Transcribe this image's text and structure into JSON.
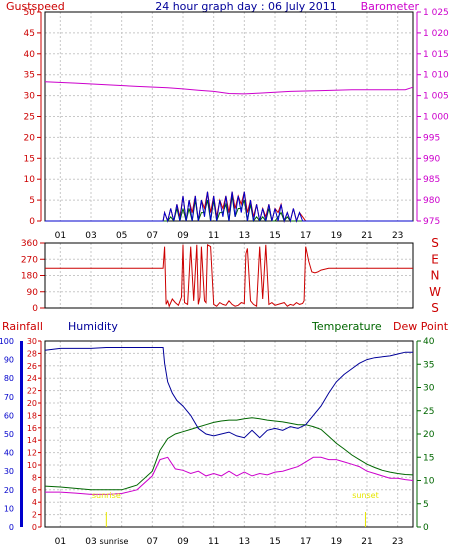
{
  "title": "24 hour graph day : 06 July 2011",
  "colors": {
    "gust": "#cc0000",
    "barometer": "#cc00cc",
    "wind": "#cc0000",
    "rain": "#cc0000",
    "humidity": "#000099",
    "temperature": "#006600",
    "dewpoint": "#cc00cc",
    "humAxis": "#0000cc",
    "sunLabel": "#e6e600",
    "grid": "#c8c8c8"
  },
  "chart_data": [
    {
      "type": "line",
      "name": "gust-barometer",
      "left_label": "Gustspeed",
      "right_label": "Barometer",
      "x_ticks": [
        "01",
        "03",
        "05",
        "07",
        "09",
        "11",
        "13",
        "15",
        "17",
        "19",
        "21",
        "23"
      ],
      "xlim": [
        0,
        24
      ],
      "y_left_ticks": [
        "0",
        "5",
        "10",
        "15",
        "20",
        "25",
        "30",
        "35",
        "40",
        "45",
        "50"
      ],
      "ylim_left": [
        0,
        50
      ],
      "y_right_ticks": [
        "975",
        "980",
        "985",
        "990",
        "995",
        "1 000",
        "1 005",
        "1 010",
        "1 015",
        "1 020",
        "1 025"
      ],
      "ylim_right": [
        975,
        1025
      ],
      "series": [
        {
          "axis": "right",
          "x": [
            0,
            2,
            4,
            6,
            8,
            9,
            10,
            11,
            12,
            13,
            14,
            15,
            16,
            18,
            20,
            22,
            23.5,
            24
          ],
          "y": [
            1008.3,
            1008.0,
            1007.6,
            1007.2,
            1006.9,
            1006.6,
            1006.3,
            1006.0,
            1005.5,
            1005.4,
            1005.6,
            1005.8,
            1006.0,
            1006.2,
            1006.4,
            1006.4,
            1006.4,
            1007.0
          ]
        },
        {
          "axis": "left",
          "x": [
            0,
            7.7,
            7.8,
            8.0,
            8.2,
            8.4,
            8.6,
            8.8,
            9.0,
            9.2,
            9.4,
            9.6,
            9.8,
            10.0,
            10.2,
            10.4,
            10.6,
            10.8,
            11.0,
            11.2,
            11.4,
            11.6,
            11.8,
            12.0,
            12.2,
            12.4,
            12.6,
            12.8,
            13.0,
            13.2,
            13.4,
            13.6,
            13.8,
            14.0,
            14.2,
            14.4,
            14.6,
            14.8,
            15.0,
            15.2,
            15.4,
            15.6,
            15.8,
            16.0,
            16.2,
            16.4,
            16.6,
            16.8,
            17.0,
            17.1,
            24
          ],
          "y": [
            0,
            0,
            2,
            0,
            3,
            0,
            4,
            1,
            6,
            0,
            5,
            2,
            6,
            0,
            5,
            3,
            7,
            2,
            6,
            1,
            5,
            3,
            6,
            2,
            7,
            3,
            6,
            4,
            7,
            2,
            5,
            1,
            4,
            0,
            3,
            1,
            4,
            0,
            3,
            2,
            4,
            0,
            2,
            0,
            3,
            0,
            2,
            1,
            0,
            0,
            0
          ]
        }
      ]
    },
    {
      "type": "line",
      "name": "wind-direction",
      "y_ticks": [
        "360",
        "270",
        "180",
        "90",
        "0"
      ],
      "ylim": [
        0,
        360
      ],
      "compass": [
        "S",
        "E",
        "N",
        "W",
        "S"
      ],
      "xlim": [
        0,
        24
      ],
      "series": [
        {
          "x": [
            0,
            7.7,
            7.8,
            7.9,
            8.0,
            8.1,
            8.3,
            8.5,
            8.7,
            8.9,
            9.0,
            9.1,
            9.3,
            9.5,
            9.7,
            9.9,
            10.0,
            10.1,
            10.2,
            10.4,
            10.5,
            10.6,
            10.8,
            11.0,
            11.2,
            11.4,
            11.6,
            11.8,
            12.0,
            12.2,
            12.4,
            12.6,
            12.8,
            13.0,
            13.1,
            13.2,
            13.4,
            13.6,
            13.8,
            14.0,
            14.2,
            14.4,
            14.6,
            14.8,
            15.0,
            15.2,
            15.4,
            15.6,
            15.8,
            16.0,
            16.2,
            16.4,
            16.6,
            16.8,
            16.9,
            17.0,
            17.2,
            17.4,
            17.6,
            17.8,
            18.0,
            18.5,
            19.0,
            24
          ],
          "y": [
            220,
            220,
            340,
            20,
            40,
            10,
            50,
            30,
            15,
            60,
            350,
            30,
            20,
            340,
            40,
            350,
            20,
            60,
            340,
            40,
            30,
            350,
            340,
            20,
            10,
            30,
            20,
            15,
            40,
            20,
            10,
            15,
            30,
            25,
            300,
            330,
            40,
            20,
            10,
            340,
            50,
            350,
            20,
            30,
            15,
            20,
            25,
            30,
            10,
            20,
            15,
            30,
            20,
            25,
            40,
            340,
            260,
            200,
            195,
            200,
            210,
            220,
            220,
            220
          ]
        }
      ]
    },
    {
      "type": "line",
      "name": "rain-humidity-temperature-dewpoint",
      "labels": {
        "rain": "Rainfall",
        "humidity": "Humidity",
        "temperature": "Temperature",
        "dewpoint": "Dew Point"
      },
      "xlim": [
        0,
        24
      ],
      "rain_ticks": [
        "0",
        "2",
        "4",
        "6",
        "8",
        "10",
        "12",
        "14",
        "16",
        "18",
        "20",
        "22",
        "24",
        "26",
        "28",
        "30"
      ],
      "rain_ylim": [
        0,
        30
      ],
      "humidity_ticks": [
        "0",
        "10",
        "20",
        "30",
        "40",
        "50",
        "60",
        "70",
        "80",
        "90",
        "100"
      ],
      "humidity_ylim": [
        0,
        100
      ],
      "temp_ticks": [
        "0",
        "5",
        "10",
        "15",
        "20",
        "25",
        "30",
        "35",
        "40"
      ],
      "temp_ylim": [
        0,
        40
      ],
      "annotations": [
        {
          "text": "sunrise",
          "x": 4.0
        },
        {
          "text": "sunset",
          "x": 20.9
        }
      ],
      "bottom_marker": "sunrise",
      "series": [
        {
          "key": "humidity",
          "x": [
            0,
            1,
            2,
            3,
            4,
            5,
            6,
            7,
            7.7,
            7.8,
            8.0,
            8.3,
            8.6,
            9.0,
            9.5,
            10.0,
            10.5,
            11.0,
            11.5,
            12.0,
            12.5,
            13.0,
            13.5,
            14.0,
            14.5,
            15.0,
            15.5,
            16.0,
            16.5,
            17.0,
            17.5,
            18.0,
            18.5,
            19.0,
            19.5,
            20.0,
            20.5,
            21.0,
            21.5,
            22.0,
            22.5,
            23.0,
            23.5,
            24
          ],
          "y": [
            95,
            96,
            96,
            96,
            96.5,
            96.5,
            96.5,
            96.5,
            96.5,
            88,
            78,
            72,
            68,
            65,
            60,
            53,
            50,
            49,
            50,
            51,
            49,
            48,
            52,
            48,
            52,
            53,
            52,
            54,
            53,
            55,
            60,
            65,
            72,
            78,
            82,
            85,
            88,
            90,
            91,
            91.5,
            92,
            93,
            94,
            94
          ]
        },
        {
          "key": "temperature",
          "x": [
            0,
            1,
            2,
            3,
            4,
            5,
            6,
            7,
            7.5,
            8.0,
            8.5,
            9.0,
            9.5,
            10.0,
            10.5,
            11.0,
            11.5,
            12.0,
            12.5,
            13.0,
            13.5,
            14.0,
            14.5,
            15.0,
            15.5,
            16.0,
            16.5,
            17.0,
            17.5,
            18.0,
            18.5,
            19.0,
            19.5,
            20.0,
            20.5,
            21.0,
            21.5,
            22.0,
            22.5,
            23.0,
            23.5,
            24
          ],
          "y": [
            8.8,
            8.6,
            8.3,
            8.0,
            8.0,
            8.0,
            9.0,
            12.0,
            16.5,
            19.0,
            20.0,
            20.5,
            21.0,
            21.5,
            22.0,
            22.5,
            22.8,
            23.0,
            23.0,
            23.3,
            23.5,
            23.3,
            23.0,
            22.8,
            22.6,
            22.3,
            22.0,
            22.0,
            21.6,
            21.0,
            19.5,
            18.0,
            16.8,
            15.5,
            14.5,
            13.5,
            12.8,
            12.2,
            11.8,
            11.5,
            11.3,
            11.2
          ]
        },
        {
          "key": "dewpoint",
          "x": [
            0,
            1,
            2,
            3,
            4,
            5,
            6,
            7,
            7.5,
            8.0,
            8.5,
            9.0,
            9.5,
            10.0,
            10.5,
            11.0,
            11.5,
            12.0,
            12.5,
            13.0,
            13.5,
            14.0,
            14.5,
            15.0,
            15.5,
            16.0,
            16.5,
            17.0,
            17.5,
            18.0,
            18.5,
            19.0,
            19.5,
            20.0,
            20.5,
            21.0,
            21.5,
            22.0,
            22.5,
            23.0,
            23.5,
            24
          ],
          "y": [
            7.5,
            7.5,
            7.3,
            7.0,
            7.0,
            7.2,
            8.0,
            11.0,
            14.5,
            15.0,
            12.5,
            12.2,
            11.5,
            12.0,
            11.0,
            11.5,
            11.0,
            12.0,
            11.0,
            11.8,
            11.0,
            11.5,
            11.2,
            11.8,
            12.0,
            12.5,
            13.0,
            14.0,
            15.0,
            15.0,
            14.5,
            14.5,
            14.0,
            13.5,
            13.0,
            12.0,
            11.5,
            11.0,
            10.5,
            10.5,
            10.2,
            10.0
          ]
        }
      ]
    }
  ]
}
